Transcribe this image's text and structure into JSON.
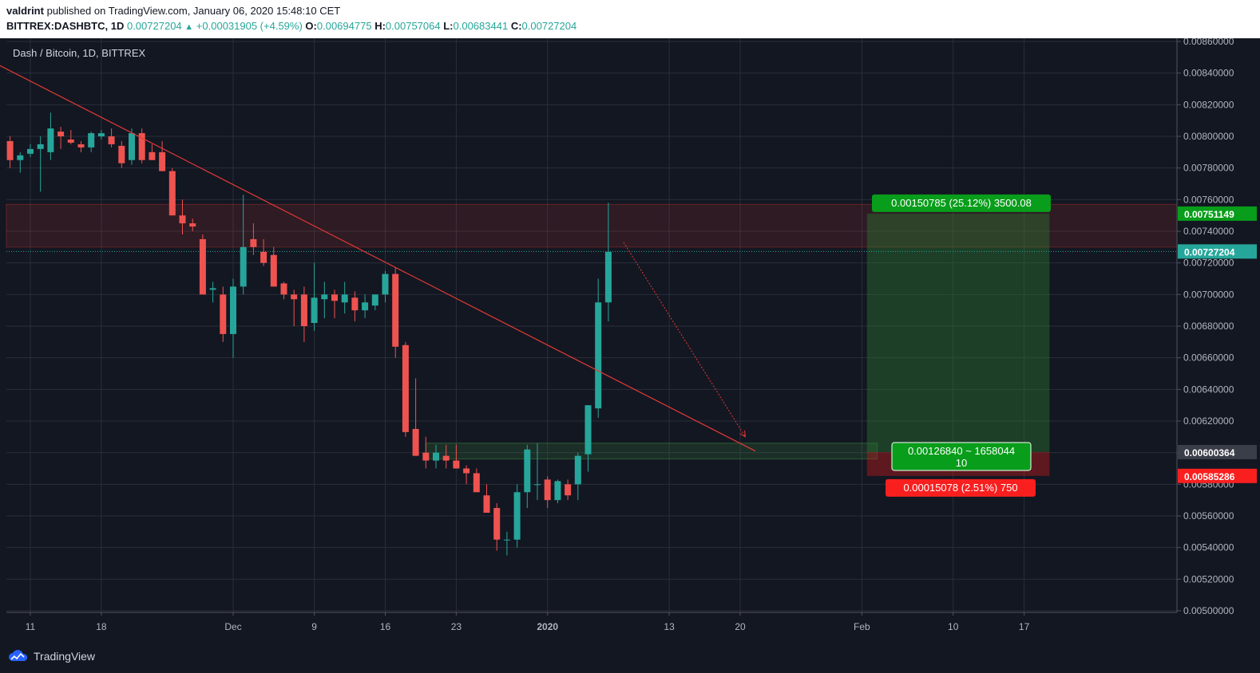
{
  "header": {
    "author": "valdrint",
    "published_text": "published on TradingView.com, January 06, 2020 15:48:10 CET",
    "symbol": "BITTREX:DASHBTC, 1D",
    "last": "0.00727204",
    "change": "+0.00031905 (+4.59%)",
    "o_label": "O:",
    "o_value": "0.00694775",
    "h_label": "H:",
    "h_value": "0.00757064",
    "l_label": "L:",
    "l_value": "0.00683441",
    "c_label": "C:",
    "c_value": "0.00727204"
  },
  "footer": {
    "brand": "TradingView"
  },
  "colors": {
    "background": "#131722",
    "grid": "#2a2e39",
    "up": "#26a69a",
    "down": "#ef5350",
    "trendline": "#e53935",
    "profit": "#1b5e20",
    "loss": "#b71c1c",
    "axis_text": "#b2b5be"
  },
  "chart_data": {
    "type": "candlestick",
    "title": "Dash / Bitcoin, 1D, BITTREX",
    "ylim": [
      0.005,
      0.0086
    ],
    "x_axis_labels": [
      {
        "label": "11",
        "x_index": 2
      },
      {
        "label": "18",
        "x_index": 9
      },
      {
        "label": "Dec",
        "x_index": 22
      },
      {
        "label": "9",
        "x_index": 30
      },
      {
        "label": "16",
        "x_index": 37
      },
      {
        "label": "23",
        "x_index": 44
      },
      {
        "label": "2020",
        "x_index": 53
      },
      {
        "label": "13",
        "x_index": 65
      },
      {
        "label": "20",
        "x_index": 72
      },
      {
        "label": "Feb",
        "x_index": 84
      },
      {
        "label": "10",
        "x_index": 93
      },
      {
        "label": "17",
        "x_index": 100
      }
    ],
    "y_axis_ticks": [
      "0.00860000",
      "0.00840000",
      "0.00820000",
      "0.00800000",
      "0.00780000",
      "0.00760000",
      "0.00740000",
      "0.00720000",
      "0.00700000",
      "0.00680000",
      "0.00660000",
      "0.00640000",
      "0.00620000",
      "0.00600000",
      "0.00580000",
      "0.00560000",
      "0.00540000",
      "0.00520000",
      "0.00500000"
    ],
    "candles": [
      [
        0.00797,
        0.008,
        0.0078,
        0.00785
      ],
      [
        0.00785,
        0.0079,
        0.00777,
        0.00788
      ],
      [
        0.00789,
        0.00795,
        0.00787,
        0.00792
      ],
      [
        0.00792,
        0.008,
        0.00765,
        0.00795
      ],
      [
        0.0079,
        0.00815,
        0.00785,
        0.00805
      ],
      [
        0.00803,
        0.00806,
        0.00792,
        0.008
      ],
      [
        0.00798,
        0.00804,
        0.00795,
        0.00796
      ],
      [
        0.00795,
        0.00797,
        0.0079,
        0.00793
      ],
      [
        0.00793,
        0.00803,
        0.0079,
        0.00802
      ],
      [
        0.008,
        0.00804,
        0.00798,
        0.00802
      ],
      [
        0.008,
        0.00805,
        0.00793,
        0.00795
      ],
      [
        0.00794,
        0.00797,
        0.0078,
        0.00783
      ],
      [
        0.00785,
        0.00805,
        0.00782,
        0.00802
      ],
      [
        0.00802,
        0.00805,
        0.00783,
        0.00785
      ],
      [
        0.0079,
        0.00795,
        0.00785,
        0.00785
      ],
      [
        0.0079,
        0.00797,
        0.0078,
        0.00778
      ],
      [
        0.00778,
        0.0078,
        0.0075,
        0.0075
      ],
      [
        0.0075,
        0.0076,
        0.00738,
        0.00745
      ],
      [
        0.00745,
        0.00748,
        0.0074,
        0.00743
      ],
      [
        0.00735,
        0.00738,
        0.007,
        0.007
      ],
      [
        0.00703,
        0.00708,
        0.00695,
        0.00704
      ],
      [
        0.007,
        0.00705,
        0.0067,
        0.00675
      ],
      [
        0.00675,
        0.0071,
        0.0066,
        0.00705
      ],
      [
        0.00705,
        0.00763,
        0.007,
        0.0073
      ],
      [
        0.00735,
        0.00745,
        0.00725,
        0.0073
      ],
      [
        0.00727,
        0.00735,
        0.00718,
        0.0072
      ],
      [
        0.00725,
        0.0073,
        0.00708,
        0.00705
      ],
      [
        0.00707,
        0.00708,
        0.00697,
        0.007
      ],
      [
        0.007,
        0.00703,
        0.0068,
        0.00697
      ],
      [
        0.007,
        0.00705,
        0.0067,
        0.0068
      ],
      [
        0.00682,
        0.0072,
        0.00677,
        0.00698
      ],
      [
        0.00697,
        0.00708,
        0.00685,
        0.007
      ],
      [
        0.007,
        0.00703,
        0.00685,
        0.00696
      ],
      [
        0.00695,
        0.00708,
        0.00688,
        0.007
      ],
      [
        0.00698,
        0.00702,
        0.00683,
        0.0069
      ],
      [
        0.0069,
        0.007,
        0.00685,
        0.00695
      ],
      [
        0.00693,
        0.007,
        0.0069,
        0.007
      ],
      [
        0.007,
        0.00715,
        0.00695,
        0.00713
      ],
      [
        0.00713,
        0.00717,
        0.0066,
        0.00667
      ],
      [
        0.00668,
        0.0067,
        0.0061,
        0.00613
      ],
      [
        0.00615,
        0.00647,
        0.00598,
        0.00598
      ],
      [
        0.006,
        0.0061,
        0.0059,
        0.00595
      ],
      [
        0.00595,
        0.00605,
        0.0059,
        0.006
      ],
      [
        0.00598,
        0.00605,
        0.0059,
        0.00595
      ],
      [
        0.00595,
        0.00605,
        0.0059,
        0.0059
      ],
      [
        0.0059,
        0.00592,
        0.0058,
        0.00587
      ],
      [
        0.00587,
        0.0059,
        0.00575,
        0.00575
      ],
      [
        0.00573,
        0.0058,
        0.00562,
        0.00562
      ],
      [
        0.00565,
        0.00568,
        0.00538,
        0.00545
      ],
      [
        0.00545,
        0.0055,
        0.00535,
        0.00545
      ],
      [
        0.00545,
        0.0058,
        0.0054,
        0.00575
      ],
      [
        0.00575,
        0.00605,
        0.00565,
        0.00602
      ],
      [
        0.0058,
        0.00606,
        0.0057,
        0.0058
      ],
      [
        0.00583,
        0.00585,
        0.00565,
        0.0057
      ],
      [
        0.0057,
        0.00583,
        0.00568,
        0.00582
      ],
      [
        0.0058,
        0.00583,
        0.0057,
        0.00573
      ],
      [
        0.0058,
        0.006,
        0.0057,
        0.00598
      ],
      [
        0.00599,
        0.0063,
        0.00588,
        0.0063
      ],
      [
        0.00628,
        0.0071,
        0.00622,
        0.00695
      ],
      [
        0.00695,
        0.00758,
        0.00683,
        0.00727
      ]
    ],
    "annotations": {
      "resistance_zone": [
        0.0073,
        0.00757
      ],
      "support_zone": [
        0.00596,
        0.00606
      ],
      "trendline": [
        [
          -2,
          0.00848
        ],
        [
          73.5,
          0.00601
        ]
      ],
      "projection_arrow": [
        [
          60.5,
          0.00733
        ],
        [
          72.5,
          0.0061
        ]
      ],
      "current_price": 0.00727204,
      "position": {
        "target": 0.00751149,
        "entry": 0.00600364,
        "stop": 0.00585286
      },
      "labels": {
        "profit": "0.00150785 (25.12%) 3500.08",
        "entry_line1": "0.00126840 ~ 1658044",
        "entry_line2": "10",
        "loss": "0.00015078 (2.51%) 750"
      },
      "price_tags": {
        "target": "0.00751149",
        "current": "0.00727204",
        "entry": "0.00600364",
        "stop": "0.00585286"
      }
    }
  }
}
